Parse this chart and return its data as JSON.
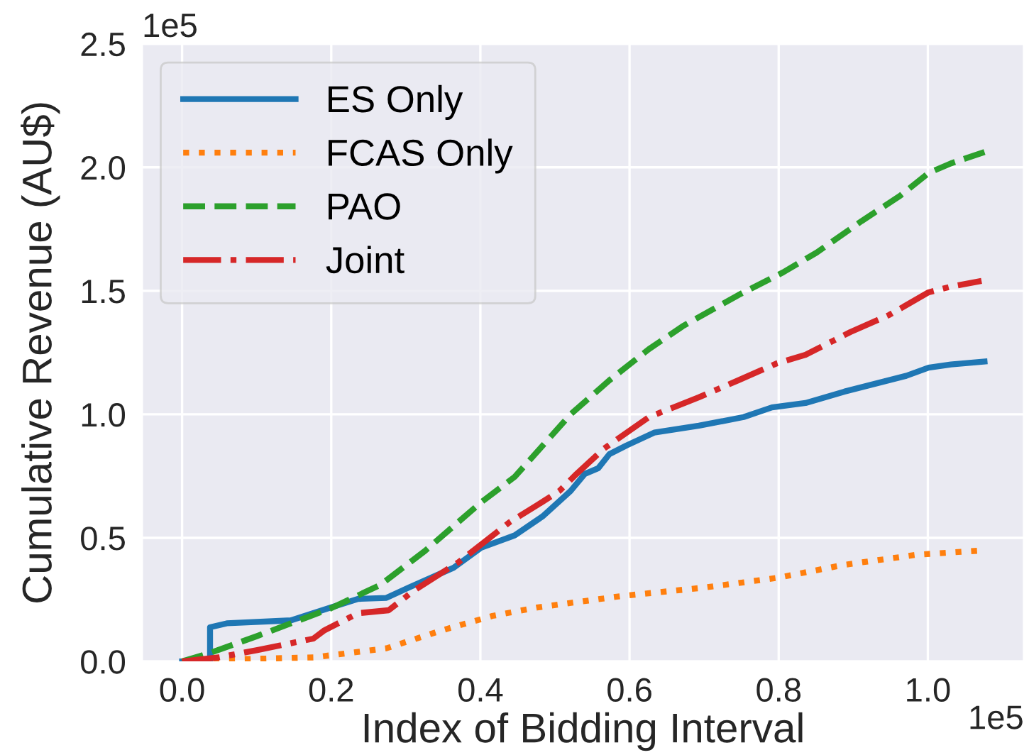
{
  "chart_data": {
    "type": "line",
    "xlabel": "Index of Bidding Interval",
    "ylabel": "Cumulative Revenue (AU$)",
    "xlim": [
      -0.05375,
      1.12875
    ],
    "ylim": [
      0.0,
      2.5
    ],
    "xticks": [
      {
        "value": 0,
        "label": "0.0"
      },
      0.2,
      0.4,
      0.6,
      0.8,
      {
        "value": 1,
        "label": "1.0"
      }
    ],
    "yticks": [
      {
        "value": 0,
        "label": "0.0"
      },
      0.5,
      {
        "value": 1,
        "label": "1.0"
      },
      1.5,
      {
        "value": 2,
        "label": "2.0"
      },
      2.5
    ],
    "grid": true,
    "legend": "top left",
    "marker": "none",
    "annotations": [
      "1e5",
      "1e5"
    ],
    "series": [
      {
        "name": "ES Only",
        "color": "#1f77b4",
        "line_style": "solid",
        "x": [
          0,
          0.0375,
          0.0375,
          0.06,
          0.146,
          0.199,
          0.236,
          0.274,
          0.304,
          0.364,
          0.401,
          0.446,
          0.483,
          0.521,
          0.54,
          0.558,
          0.573,
          0.596,
          0.633,
          0.693,
          0.753,
          0.791,
          0.836,
          0.888,
          0.971,
          1.001,
          1.031,
          1.076
        ],
        "values": [
          0,
          0,
          0.138,
          0.154,
          0.166,
          0.218,
          0.253,
          0.257,
          0.299,
          0.379,
          0.46,
          0.51,
          0.586,
          0.69,
          0.759,
          0.782,
          0.839,
          0.874,
          0.926,
          0.954,
          0.989,
          1.028,
          1.046,
          1.092,
          1.156,
          1.189,
          1.202,
          1.214
        ]
      },
      {
        "name": "FCAS Only",
        "color": "#ff7f0e",
        "line_style": "dotted",
        "x": [
          0,
          0.049,
          0.176,
          0.274,
          0.349,
          0.416,
          0.476,
          0.588,
          0.701,
          0.798,
          0.888,
          0.986,
          1.068
        ],
        "values": [
          0,
          0.007,
          0.016,
          0.053,
          0.126,
          0.184,
          0.218,
          0.264,
          0.299,
          0.338,
          0.391,
          0.432,
          0.448
        ]
      },
      {
        "name": "PAO",
        "color": "#2ca02c",
        "line_style": "dashed",
        "x": [
          0,
          0.0375,
          0.101,
          0.199,
          0.266,
          0.326,
          0.401,
          0.446,
          0.521,
          0.573,
          0.626,
          0.671,
          0.746,
          0.806,
          0.851,
          0.911,
          0.963,
          1.001,
          1.031,
          1.076
        ],
        "values": [
          0,
          0.034,
          0.103,
          0.214,
          0.31,
          0.448,
          0.644,
          0.747,
          1.0,
          1.138,
          1.264,
          1.356,
          1.483,
          1.575,
          1.655,
          1.782,
          1.885,
          1.977,
          2.016,
          2.062
        ]
      },
      {
        "name": "Joint",
        "color": "#d62728",
        "line_style": "dashdot",
        "x": [
          0,
          0.049,
          0.101,
          0.176,
          0.191,
          0.236,
          0.277,
          0.311,
          0.371,
          0.439,
          0.476,
          0.506,
          0.529,
          0.566,
          0.626,
          0.693,
          0.746,
          0.798,
          0.836,
          0.896,
          0.948,
          1.001,
          1.031,
          1.072
        ],
        "values": [
          0,
          0.016,
          0.046,
          0.092,
          0.126,
          0.195,
          0.207,
          0.287,
          0.402,
          0.563,
          0.632,
          0.69,
          0.759,
          0.862,
          0.989,
          1.069,
          1.138,
          1.207,
          1.241,
          1.333,
          1.402,
          1.494,
          1.517,
          1.54
        ]
      }
    ]
  }
}
